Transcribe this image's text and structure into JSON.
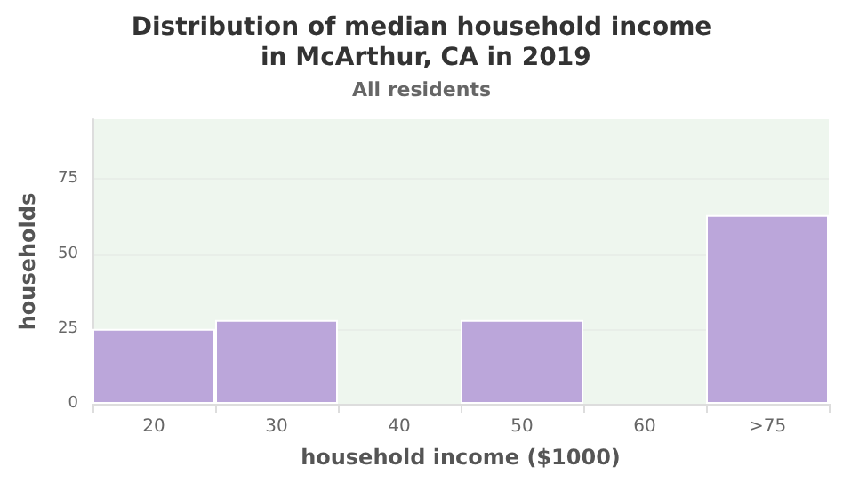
{
  "chart_data": {
    "type": "bar",
    "title": "Distribution of median household income in McArthur, CA in 2019",
    "subtitle": "All residents",
    "xlabel": "household income ($1000)",
    "ylabel": "households",
    "categories": [
      "20",
      "30",
      "40",
      "50",
      "60",
      ">75"
    ],
    "values": [
      25,
      28,
      null,
      28,
      null,
      63
    ],
    "color": "#bba6da",
    "ylim": [
      0,
      95
    ],
    "yticks": [
      0,
      25,
      50,
      75
    ],
    "grid": "y"
  }
}
